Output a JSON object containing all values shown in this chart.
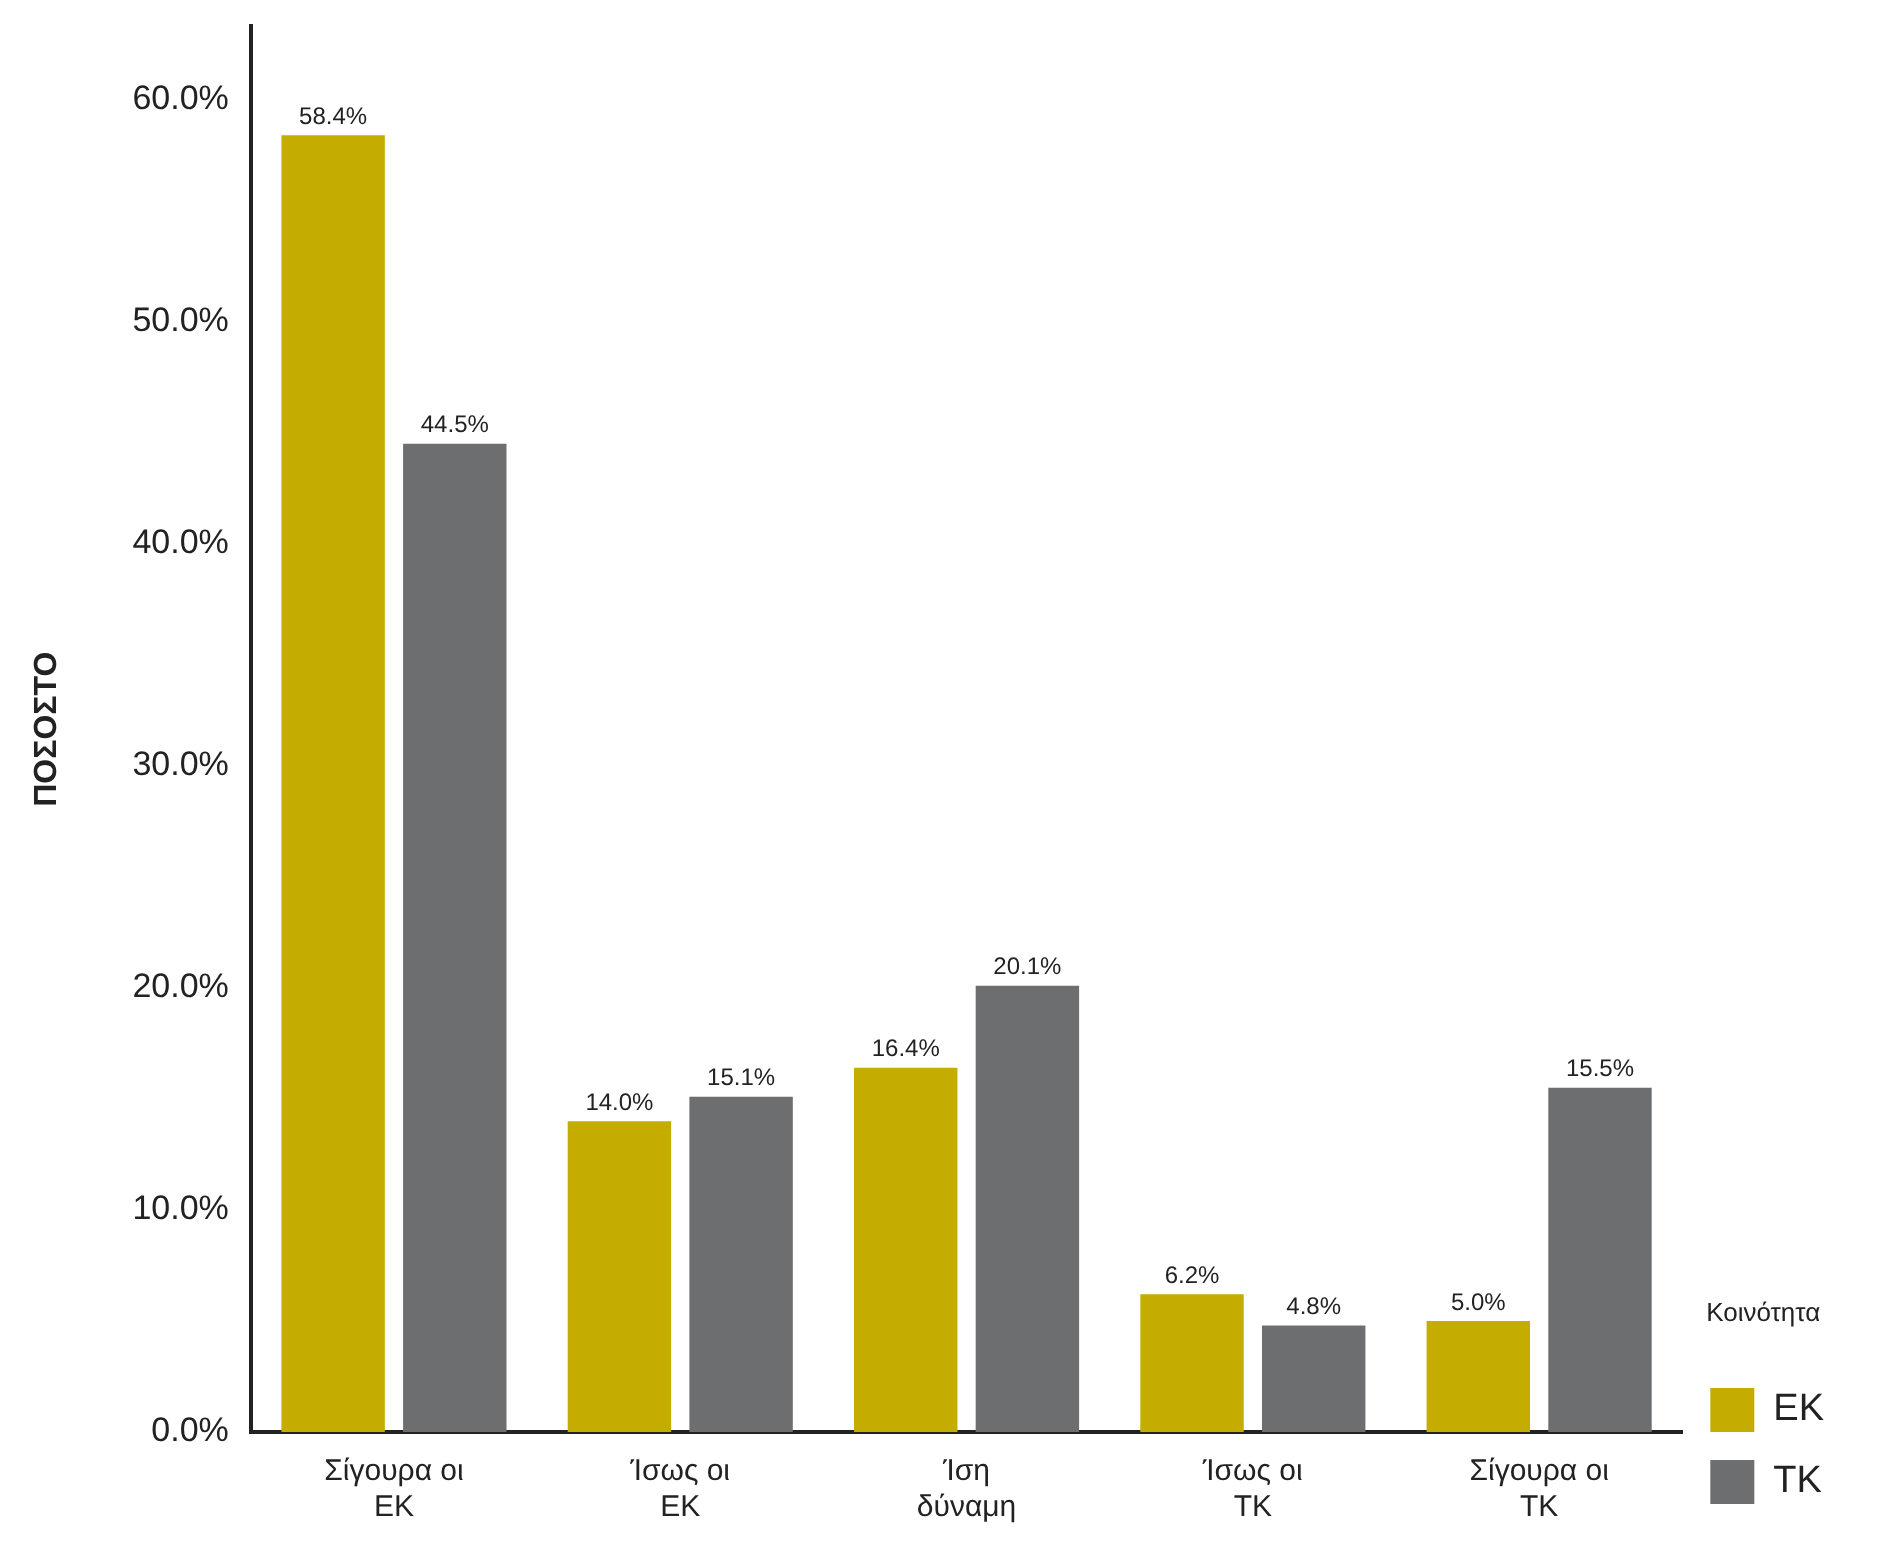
{
  "chart_data": {
    "type": "bar",
    "ylabel": "ΠΟΣΟΣΤΟ",
    "legend_title": "Κοινότητα",
    "legend": "right",
    "categories": [
      "Σίγουρα οι ΕΚ",
      "Ίσως οι ΕΚ",
      "Ίση δύναμη",
      "Ίσως οι ΤΚ",
      "Σίγουρα οι ΤΚ"
    ],
    "series": [
      {
        "name": "ΕΚ",
        "color": "#c4ad00",
        "values": [
          58.4,
          14.0,
          16.4,
          6.2,
          5.0
        ],
        "value_labels": [
          "58.4%",
          "14.0%",
          "16.4%",
          "6.2%",
          "5.0%"
        ]
      },
      {
        "name": "ΤΚ",
        "color": "#6d6e70",
        "values": [
          44.5,
          15.1,
          20.1,
          4.8,
          15.5
        ],
        "value_labels": [
          "44.5%",
          "15.1%",
          "20.1%",
          "4.8%",
          "15.5%"
        ]
      }
    ],
    "ylim": [
      0,
      63.3
    ],
    "yticks": [
      {
        "value": 0,
        "label": "0.0%"
      },
      {
        "value": 10,
        "label": "10.0%"
      },
      {
        "value": 20,
        "label": "20.0%"
      },
      {
        "value": 30,
        "label": "30.0%"
      },
      {
        "value": 40,
        "label": "40.0%"
      },
      {
        "value": 50,
        "label": "50.0%"
      },
      {
        "value": 60,
        "label": "60.0%"
      }
    ],
    "grid": false
  }
}
